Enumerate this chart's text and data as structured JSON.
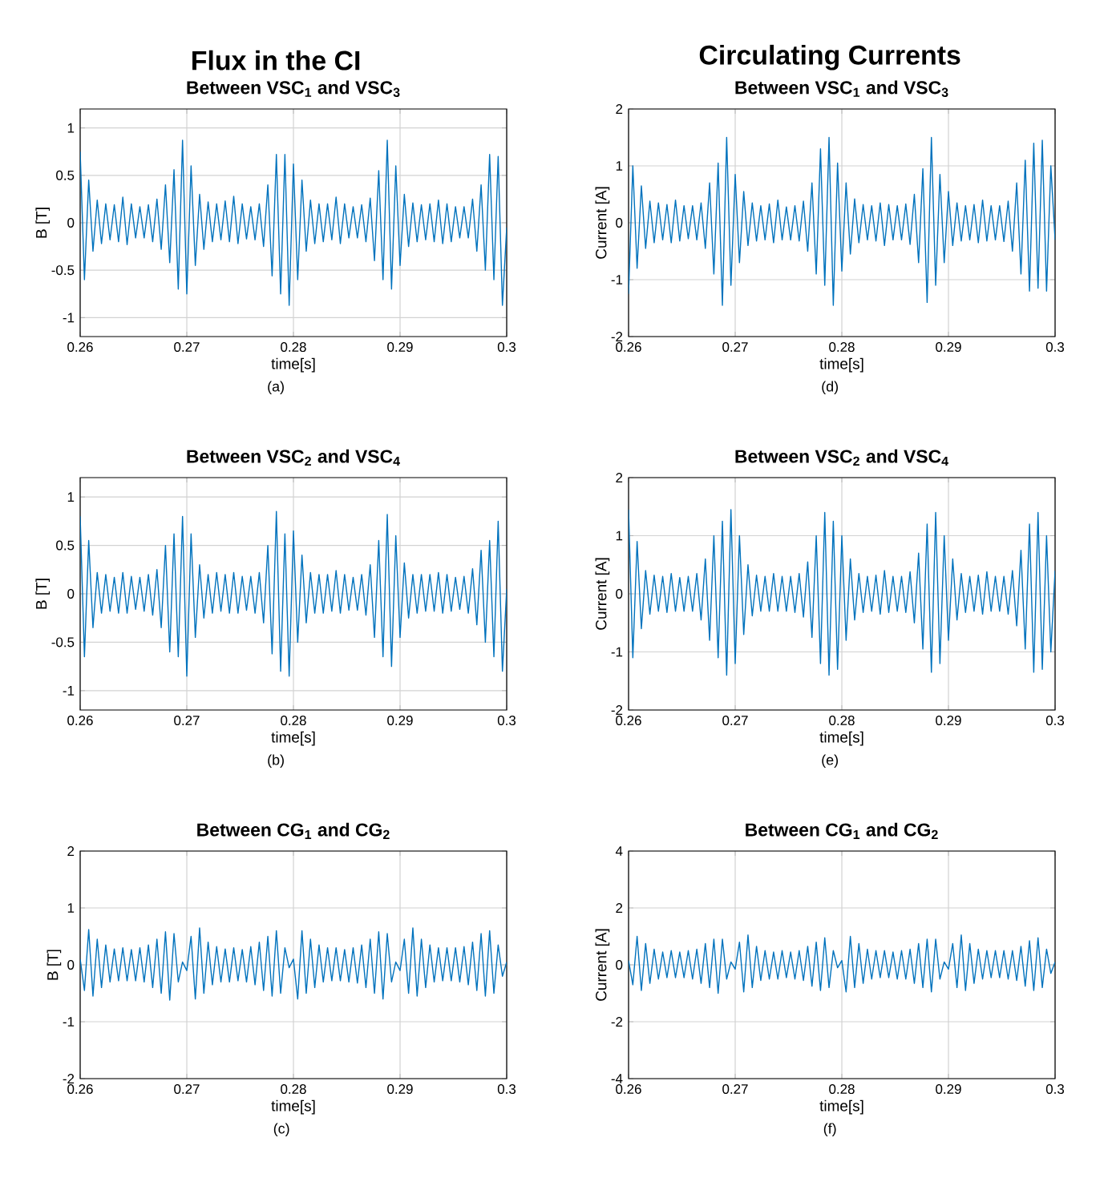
{
  "chart_data": [
    {
      "type": "line",
      "title": "Flux in the CI",
      "subtitle": "Between VSC$_{1}$ and VSC$_{3}$",
      "xlabel": "time[s]",
      "ylabel": "B [T]",
      "annotations": [
        "(a)"
      ],
      "color": "#0072bd",
      "grid": true,
      "xlim": [
        0.26,
        0.3
      ],
      "xticks": [
        0.26,
        0.27,
        0.28,
        0.29,
        0.3
      ],
      "ylim": [
        -1.2,
        1.2
      ],
      "yticks": [
        -1,
        -0.5,
        0,
        0.5,
        1
      ],
      "x": [
        0.26,
        0.2604,
        0.2608,
        0.2612,
        0.2616,
        0.262,
        0.2624,
        0.2628,
        0.2632,
        0.2636,
        0.264,
        0.2644,
        0.2648,
        0.2652,
        0.2656,
        0.266,
        0.2664,
        0.2668,
        0.2672,
        0.2676,
        0.268,
        0.2684,
        0.2688,
        0.2692,
        0.2696,
        0.27,
        0.2704,
        0.2708,
        0.2712,
        0.2716,
        0.272,
        0.2724,
        0.2728,
        0.2732,
        0.2736,
        0.274,
        0.2744,
        0.2748,
        0.2752,
        0.2756,
        0.276,
        0.2764,
        0.2768,
        0.2772,
        0.2776,
        0.278,
        0.2784,
        0.2788,
        0.2792,
        0.2796,
        0.28,
        0.2804,
        0.2808,
        0.2812,
        0.2816,
        0.282,
        0.2824,
        0.2828,
        0.2832,
        0.2836,
        0.284,
        0.2844,
        0.2848,
        0.2852,
        0.2856,
        0.286,
        0.2864,
        0.2868,
        0.2872,
        0.2876,
        0.288,
        0.2884,
        0.2888,
        0.2892,
        0.2896,
        0.29,
        0.2904,
        0.2908,
        0.2912,
        0.2916,
        0.292,
        0.2924,
        0.2928,
        0.2932,
        0.2936,
        0.294,
        0.2944,
        0.2948,
        0.2952,
        0.2956,
        0.296,
        0.2964,
        0.2968,
        0.2972,
        0.2976,
        0.298,
        0.2984,
        0.2988,
        0.2992,
        0.2996,
        0.3
      ],
      "values": [
        0.75,
        -0.6,
        0.45,
        -0.3,
        0.24,
        -0.22,
        0.2,
        -0.18,
        0.19,
        -0.2,
        0.27,
        -0.23,
        0.2,
        -0.16,
        0.17,
        -0.16,
        0.19,
        -0.2,
        0.25,
        -0.28,
        0.4,
        -0.42,
        0.56,
        -0.7,
        0.87,
        -0.75,
        0.6,
        -0.45,
        0.3,
        -0.28,
        0.22,
        -0.2,
        0.2,
        -0.18,
        0.23,
        -0.2,
        0.28,
        -0.22,
        0.2,
        -0.17,
        0.17,
        -0.18,
        0.2,
        -0.25,
        0.4,
        -0.56,
        0.72,
        -0.75,
        0.72,
        -0.87,
        0.62,
        -0.6,
        0.45,
        -0.3,
        0.24,
        -0.22,
        0.2,
        -0.2,
        0.2,
        -0.18,
        0.27,
        -0.22,
        0.2,
        -0.16,
        0.17,
        -0.16,
        0.19,
        -0.2,
        0.26,
        -0.4,
        0.55,
        -0.6,
        0.87,
        -0.7,
        0.6,
        -0.45,
        0.3,
        -0.25,
        0.21,
        -0.2,
        0.19,
        -0.18,
        0.2,
        -0.2,
        0.24,
        -0.22,
        0.2,
        -0.2,
        0.17,
        -0.16,
        0.17,
        -0.16,
        0.25,
        -0.3,
        0.4,
        -0.5,
        0.72,
        -0.6,
        0.7,
        -0.87,
        -0.05
      ]
    },
    {
      "type": "line",
      "title": "Circulating Currents",
      "subtitle": "Between VSC$_{1}$ and VSC$_{3}$",
      "xlabel": "time[s]",
      "ylabel": "Current [A]",
      "annotations": [
        "(d)"
      ],
      "color": "#0072bd",
      "grid": true,
      "xlim": [
        0.26,
        0.3
      ],
      "xticks": [
        0.26,
        0.27,
        0.28,
        0.29,
        0.3
      ],
      "ylim": [
        -2,
        2
      ],
      "yticks": [
        -2,
        -1,
        0,
        1,
        2
      ],
      "x": [
        0.26,
        0.2604,
        0.2608,
        0.2612,
        0.2616,
        0.262,
        0.2624,
        0.2628,
        0.2632,
        0.2636,
        0.264,
        0.2644,
        0.2648,
        0.2652,
        0.2656,
        0.266,
        0.2664,
        0.2668,
        0.2672,
        0.2676,
        0.268,
        0.2684,
        0.2688,
        0.2692,
        0.2696,
        0.27,
        0.2704,
        0.2708,
        0.2712,
        0.2716,
        0.272,
        0.2724,
        0.2728,
        0.2732,
        0.2736,
        0.274,
        0.2744,
        0.2748,
        0.2752,
        0.2756,
        0.276,
        0.2764,
        0.2768,
        0.2772,
        0.2776,
        0.278,
        0.2784,
        0.2788,
        0.2792,
        0.2796,
        0.28,
        0.2804,
        0.2808,
        0.2812,
        0.2816,
        0.282,
        0.2824,
        0.2828,
        0.2832,
        0.2836,
        0.284,
        0.2844,
        0.2848,
        0.2852,
        0.2856,
        0.286,
        0.2864,
        0.2868,
        0.2872,
        0.2876,
        0.288,
        0.2884,
        0.2888,
        0.2892,
        0.2896,
        0.29,
        0.2904,
        0.2908,
        0.2912,
        0.2916,
        0.292,
        0.2924,
        0.2928,
        0.2932,
        0.2936,
        0.294,
        0.2944,
        0.2948,
        0.2952,
        0.2956,
        0.296,
        0.2964,
        0.2968,
        0.2972,
        0.2976,
        0.298,
        0.2984,
        0.2988,
        0.2992,
        0.2996,
        0.3
      ],
      "values": [
        -1.25,
        1.0,
        -0.8,
        0.65,
        -0.45,
        0.38,
        -0.35,
        0.35,
        -0.3,
        0.32,
        -0.35,
        0.4,
        -0.32,
        0.3,
        -0.28,
        0.3,
        -0.3,
        0.35,
        -0.45,
        0.7,
        -0.9,
        1.05,
        -1.45,
        1.5,
        -1.1,
        0.85,
        -0.7,
        0.55,
        -0.4,
        0.35,
        -0.32,
        0.3,
        -0.3,
        0.33,
        -0.35,
        0.4,
        -0.3,
        0.28,
        -0.3,
        0.3,
        -0.32,
        0.38,
        -0.5,
        0.7,
        -0.9,
        1.3,
        -1.1,
        1.5,
        -1.45,
        1.05,
        -0.85,
        0.7,
        -0.55,
        0.42,
        -0.35,
        0.32,
        -0.3,
        0.3,
        -0.32,
        0.35,
        -0.4,
        0.32,
        -0.3,
        0.3,
        -0.3,
        0.33,
        -0.38,
        0.5,
        -0.7,
        0.95,
        -1.4,
        1.5,
        -1.1,
        0.85,
        -0.7,
        0.55,
        -0.4,
        0.35,
        -0.32,
        0.3,
        -0.3,
        0.32,
        -0.35,
        0.4,
        -0.32,
        0.3,
        -0.3,
        0.3,
        -0.33,
        0.38,
        -0.5,
        0.7,
        -0.9,
        1.1,
        -1.2,
        1.4,
        -1.15,
        1.45,
        -1.2,
        1.0,
        -0.3
      ]
    },
    {
      "type": "line",
      "title": "Between VSC$_{2}$ and VSC$_{4}$",
      "xlabel": "time[s]",
      "ylabel": "B [T]",
      "annotations": [
        "(b)"
      ],
      "color": "#0072bd",
      "grid": true,
      "xlim": [
        0.26,
        0.3
      ],
      "xticks": [
        0.26,
        0.27,
        0.28,
        0.29,
        0.3
      ],
      "ylim": [
        -1.2,
        1.2
      ],
      "yticks": [
        -1,
        -0.5,
        0,
        0.5,
        1
      ],
      "x": [
        0.26,
        0.2604,
        0.2608,
        0.2612,
        0.2616,
        0.262,
        0.2624,
        0.2628,
        0.2632,
        0.2636,
        0.264,
        0.2644,
        0.2648,
        0.2652,
        0.2656,
        0.266,
        0.2664,
        0.2668,
        0.2672,
        0.2676,
        0.268,
        0.2684,
        0.2688,
        0.2692,
        0.2696,
        0.27,
        0.2704,
        0.2708,
        0.2712,
        0.2716,
        0.272,
        0.2724,
        0.2728,
        0.2732,
        0.2736,
        0.274,
        0.2744,
        0.2748,
        0.2752,
        0.2756,
        0.276,
        0.2764,
        0.2768,
        0.2772,
        0.2776,
        0.278,
        0.2784,
        0.2788,
        0.2792,
        0.2796,
        0.28,
        0.2804,
        0.2808,
        0.2812,
        0.2816,
        0.282,
        0.2824,
        0.2828,
        0.2832,
        0.2836,
        0.284,
        0.2844,
        0.2848,
        0.2852,
        0.2856,
        0.286,
        0.2864,
        0.2868,
        0.2872,
        0.2876,
        0.288,
        0.2884,
        0.2888,
        0.2892,
        0.2896,
        0.29,
        0.2904,
        0.2908,
        0.2912,
        0.2916,
        0.292,
        0.2924,
        0.2928,
        0.2932,
        0.2936,
        0.294,
        0.2944,
        0.2948,
        0.2952,
        0.2956,
        0.296,
        0.2964,
        0.2968,
        0.2972,
        0.2976,
        0.298,
        0.2984,
        0.2988,
        0.2992,
        0.2996,
        0.3
      ],
      "values": [
        0.8,
        -0.65,
        0.55,
        -0.35,
        0.22,
        -0.2,
        0.2,
        -0.18,
        0.17,
        -0.2,
        0.22,
        -0.2,
        0.18,
        -0.16,
        0.17,
        -0.18,
        0.2,
        -0.22,
        0.25,
        -0.35,
        0.5,
        -0.6,
        0.62,
        -0.65,
        0.8,
        -0.85,
        0.62,
        -0.45,
        0.3,
        -0.25,
        0.2,
        -0.2,
        0.22,
        -0.18,
        0.2,
        -0.2,
        0.22,
        -0.2,
        0.18,
        -0.17,
        0.18,
        -0.2,
        0.22,
        -0.3,
        0.5,
        -0.62,
        0.85,
        -0.8,
        0.62,
        -0.85,
        0.65,
        -0.5,
        0.4,
        -0.3,
        0.22,
        -0.2,
        0.2,
        -0.2,
        0.2,
        -0.18,
        0.24,
        -0.2,
        0.2,
        -0.17,
        0.17,
        -0.17,
        0.2,
        -0.22,
        0.3,
        -0.45,
        0.55,
        -0.65,
        0.82,
        -0.75,
        0.6,
        -0.45,
        0.32,
        -0.25,
        0.2,
        -0.2,
        0.2,
        -0.18,
        0.2,
        -0.18,
        0.22,
        -0.2,
        0.2,
        -0.18,
        0.17,
        -0.16,
        0.18,
        -0.2,
        0.26,
        -0.32,
        0.45,
        -0.5,
        0.55,
        -0.65,
        0.75,
        -0.8,
        0.05
      ]
    },
    {
      "type": "line",
      "title": "Between VSC$_{2}$ and VSC$_{4}$",
      "xlabel": "time[s]",
      "ylabel": "Current [A]",
      "annotations": [
        "(e)"
      ],
      "color": "#0072bd",
      "grid": true,
      "xlim": [
        0.26,
        0.3
      ],
      "xticks": [
        0.26,
        0.27,
        0.28,
        0.29,
        0.3
      ],
      "ylim": [
        -2,
        2
      ],
      "yticks": [
        -2,
        -1,
        0,
        1,
        2
      ],
      "x": [
        0.26,
        0.2604,
        0.2608,
        0.2612,
        0.2616,
        0.262,
        0.2624,
        0.2628,
        0.2632,
        0.2636,
        0.264,
        0.2644,
        0.2648,
        0.2652,
        0.2656,
        0.266,
        0.2664,
        0.2668,
        0.2672,
        0.2676,
        0.268,
        0.2684,
        0.2688,
        0.2692,
        0.2696,
        0.27,
        0.2704,
        0.2708,
        0.2712,
        0.2716,
        0.272,
        0.2724,
        0.2728,
        0.2732,
        0.2736,
        0.274,
        0.2744,
        0.2748,
        0.2752,
        0.2756,
        0.276,
        0.2764,
        0.2768,
        0.2772,
        0.2776,
        0.278,
        0.2784,
        0.2788,
        0.2792,
        0.2796,
        0.28,
        0.2804,
        0.2808,
        0.2812,
        0.2816,
        0.282,
        0.2824,
        0.2828,
        0.2832,
        0.2836,
        0.284,
        0.2844,
        0.2848,
        0.2852,
        0.2856,
        0.286,
        0.2864,
        0.2868,
        0.2872,
        0.2876,
        0.288,
        0.2884,
        0.2888,
        0.2892,
        0.2896,
        0.29,
        0.2904,
        0.2908,
        0.2912,
        0.2916,
        0.292,
        0.2924,
        0.2928,
        0.2932,
        0.2936,
        0.294,
        0.2944,
        0.2948,
        0.2952,
        0.2956,
        0.296,
        0.2964,
        0.2968,
        0.2972,
        0.2976,
        0.298,
        0.2984,
        0.2988,
        0.2992,
        0.2996,
        0.3
      ],
      "values": [
        1.45,
        -1.1,
        0.9,
        -0.6,
        0.4,
        -0.35,
        0.32,
        -0.3,
        0.3,
        -0.32,
        0.35,
        -0.3,
        0.28,
        -0.3,
        0.3,
        -0.3,
        0.35,
        -0.45,
        0.6,
        -0.8,
        1.0,
        -1.1,
        1.25,
        -1.4,
        1.45,
        -1.2,
        1.0,
        -0.7,
        0.5,
        -0.38,
        0.32,
        -0.3,
        0.3,
        -0.3,
        0.35,
        -0.3,
        0.3,
        -0.3,
        0.3,
        -0.32,
        0.35,
        -0.4,
        0.55,
        -0.75,
        1.0,
        -1.2,
        1.4,
        -1.4,
        1.25,
        -1.3,
        1.0,
        -0.8,
        0.6,
        -0.45,
        0.35,
        -0.32,
        0.3,
        -0.3,
        0.32,
        -0.35,
        0.4,
        -0.32,
        0.3,
        -0.3,
        0.3,
        -0.32,
        0.38,
        -0.5,
        0.7,
        -0.95,
        1.2,
        -1.35,
        1.4,
        -1.2,
        1.0,
        -0.8,
        0.6,
        -0.45,
        0.35,
        -0.32,
        0.3,
        -0.3,
        0.32,
        -0.35,
        0.38,
        -0.3,
        0.3,
        -0.3,
        0.3,
        -0.35,
        0.4,
        -0.55,
        0.75,
        -0.95,
        1.2,
        -1.35,
        1.4,
        -1.3,
        1.0,
        -1.0,
        0.4
      ]
    },
    {
      "type": "line",
      "title": "Between CG$_{1}$ and CG$_{2}$",
      "xlabel": "time[s]",
      "ylabel": "B [T]",
      "annotations": [
        "(c)"
      ],
      "color": "#0072bd",
      "grid": true,
      "xlim": [
        0.26,
        0.3
      ],
      "xticks": [
        0.26,
        0.27,
        0.28,
        0.29,
        0.3
      ],
      "ylim": [
        -2,
        2
      ],
      "yticks": [
        -2,
        -1,
        0,
        1,
        2
      ],
      "x": [
        0.26,
        0.2604,
        0.2608,
        0.2612,
        0.2616,
        0.262,
        0.2624,
        0.2628,
        0.2632,
        0.2636,
        0.264,
        0.2644,
        0.2648,
        0.2652,
        0.2656,
        0.266,
        0.2664,
        0.2668,
        0.2672,
        0.2676,
        0.268,
        0.2684,
        0.2688,
        0.2692,
        0.2696,
        0.27,
        0.2704,
        0.2708,
        0.2712,
        0.2716,
        0.272,
        0.2724,
        0.2728,
        0.2732,
        0.2736,
        0.274,
        0.2744,
        0.2748,
        0.2752,
        0.2756,
        0.276,
        0.2764,
        0.2768,
        0.2772,
        0.2776,
        0.278,
        0.2784,
        0.2788,
        0.2792,
        0.2796,
        0.28,
        0.2804,
        0.2808,
        0.2812,
        0.2816,
        0.282,
        0.2824,
        0.2828,
        0.2832,
        0.2836,
        0.284,
        0.2844,
        0.2848,
        0.2852,
        0.2856,
        0.286,
        0.2864,
        0.2868,
        0.2872,
        0.2876,
        0.288,
        0.2884,
        0.2888,
        0.2892,
        0.2896,
        0.29,
        0.2904,
        0.2908,
        0.2912,
        0.2916,
        0.292,
        0.2924,
        0.2928,
        0.2932,
        0.2936,
        0.294,
        0.2944,
        0.2948,
        0.2952,
        0.2956,
        0.296,
        0.2964,
        0.2968,
        0.2972,
        0.2976,
        0.298,
        0.2984,
        0.2988,
        0.2992,
        0.2996,
        0.3
      ],
      "values": [
        0.1,
        -0.45,
        0.62,
        -0.55,
        0.45,
        -0.4,
        0.35,
        -0.3,
        0.28,
        -0.28,
        0.3,
        -0.28,
        0.27,
        -0.28,
        0.3,
        -0.3,
        0.35,
        -0.4,
        0.45,
        -0.5,
        0.58,
        -0.62,
        0.55,
        -0.3,
        0.05,
        -0.1,
        0.5,
        -0.6,
        0.65,
        -0.5,
        0.4,
        -0.35,
        0.32,
        -0.3,
        0.28,
        -0.3,
        0.3,
        -0.28,
        0.27,
        -0.3,
        0.32,
        -0.35,
        0.4,
        -0.45,
        0.5,
        -0.55,
        0.6,
        -0.5,
        0.3,
        -0.05,
        0.1,
        -0.6,
        0.6,
        -0.5,
        0.45,
        -0.4,
        0.35,
        -0.3,
        0.3,
        -0.28,
        0.3,
        -0.28,
        0.27,
        -0.3,
        0.3,
        -0.32,
        0.35,
        -0.4,
        0.45,
        -0.5,
        0.58,
        -0.6,
        0.55,
        -0.3,
        0.05,
        -0.1,
        0.45,
        -0.5,
        0.65,
        -0.55,
        0.45,
        -0.4,
        0.35,
        -0.3,
        0.3,
        -0.28,
        0.3,
        -0.28,
        0.3,
        -0.3,
        0.32,
        -0.35,
        0.4,
        -0.45,
        0.55,
        -0.55,
        0.6,
        -0.5,
        0.35,
        -0.2,
        0.05
      ]
    },
    {
      "type": "line",
      "title": "Between CG$_{1}$ and CG$_{2}$",
      "xlabel": "time[s]",
      "ylabel": "Current [A]",
      "annotations": [
        "(f)"
      ],
      "color": "#0072bd",
      "grid": true,
      "xlim": [
        0.26,
        0.3
      ],
      "xticks": [
        0.26,
        0.27,
        0.28,
        0.29,
        0.3
      ],
      "ylim": [
        -4,
        4
      ],
      "yticks": [
        -4,
        -2,
        0,
        2,
        4
      ],
      "x": [
        0.26,
        0.2604,
        0.2608,
        0.2612,
        0.2616,
        0.262,
        0.2624,
        0.2628,
        0.2632,
        0.2636,
        0.264,
        0.2644,
        0.2648,
        0.2652,
        0.2656,
        0.266,
        0.2664,
        0.2668,
        0.2672,
        0.2676,
        0.268,
        0.2684,
        0.2688,
        0.2692,
        0.2696,
        0.27,
        0.2704,
        0.2708,
        0.2712,
        0.2716,
        0.272,
        0.2724,
        0.2728,
        0.2732,
        0.2736,
        0.274,
        0.2744,
        0.2748,
        0.2752,
        0.2756,
        0.276,
        0.2764,
        0.2768,
        0.2772,
        0.2776,
        0.278,
        0.2784,
        0.2788,
        0.2792,
        0.2796,
        0.28,
        0.2804,
        0.2808,
        0.2812,
        0.2816,
        0.282,
        0.2824,
        0.2828,
        0.2832,
        0.2836,
        0.284,
        0.2844,
        0.2848,
        0.2852,
        0.2856,
        0.286,
        0.2864,
        0.2868,
        0.2872,
        0.2876,
        0.288,
        0.2884,
        0.2888,
        0.2892,
        0.2896,
        0.29,
        0.2904,
        0.2908,
        0.2912,
        0.2916,
        0.292,
        0.2924,
        0.2928,
        0.2932,
        0.2936,
        0.294,
        0.2944,
        0.2948,
        0.2952,
        0.2956,
        0.296,
        0.2964,
        0.2968,
        0.2972,
        0.2976,
        0.298,
        0.2984,
        0.2988,
        0.2992,
        0.2996,
        0.3
      ],
      "values": [
        0.15,
        -0.7,
        1.0,
        -0.9,
        0.75,
        -0.65,
        0.55,
        -0.5,
        0.45,
        -0.45,
        0.5,
        -0.45,
        0.45,
        -0.45,
        0.5,
        -0.5,
        0.55,
        -0.65,
        0.75,
        -0.8,
        0.9,
        -1.0,
        0.9,
        -0.5,
        0.1,
        -0.15,
        0.8,
        -0.95,
        1.05,
        -0.8,
        0.65,
        -0.55,
        0.5,
        -0.5,
        0.45,
        -0.5,
        0.5,
        -0.45,
        0.45,
        -0.5,
        0.5,
        -0.55,
        0.65,
        -0.75,
        0.8,
        -0.9,
        0.95,
        -0.8,
        0.5,
        -0.1,
        0.15,
        -0.95,
        1.0,
        -0.8,
        0.75,
        -0.65,
        0.55,
        -0.5,
        0.5,
        -0.45,
        0.5,
        -0.45,
        0.45,
        -0.5,
        0.5,
        -0.5,
        0.55,
        -0.65,
        0.75,
        -0.8,
        0.9,
        -0.95,
        0.9,
        -0.5,
        0.1,
        -0.15,
        0.75,
        -0.8,
        1.05,
        -0.9,
        0.75,
        -0.65,
        0.55,
        -0.5,
        0.5,
        -0.45,
        0.5,
        -0.45,
        0.5,
        -0.5,
        0.5,
        -0.55,
        0.65,
        -0.75,
        0.85,
        -0.9,
        0.95,
        -0.8,
        0.55,
        -0.3,
        0.1
      ]
    }
  ]
}
